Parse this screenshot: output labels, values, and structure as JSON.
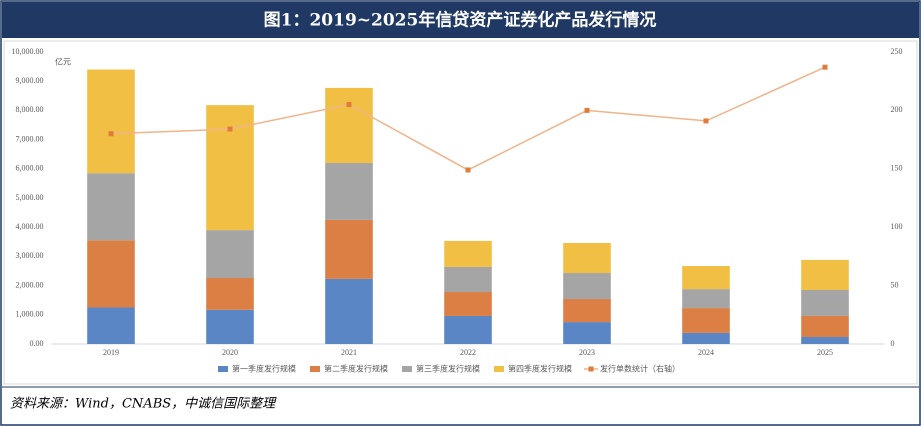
{
  "chart_data": {
    "type": "bar",
    "stacked": true,
    "title": "图1：2019~2025年信贷资产证券化产品发行情况",
    "y_axis_label": "亿元",
    "source": "资料来源：Wind，CNABS，中诚信国际整理",
    "categories": [
      "2019",
      "2020",
      "2021",
      "2022",
      "2023",
      "2024",
      "2025"
    ],
    "series": [
      {
        "name": "第一季度发行规模",
        "color": "#5b86c5",
        "values": [
          1250,
          1170,
          2230,
          960,
          750,
          380,
          240
        ]
      },
      {
        "name": "第二季度发行规模",
        "color": "#dc7f45",
        "values": [
          2300,
          1090,
          2020,
          820,
          790,
          850,
          720
        ]
      },
      {
        "name": "第三季度发行规模",
        "color": "#a5a5a5",
        "values": [
          2300,
          1640,
          1950,
          860,
          890,
          650,
          890
        ]
      },
      {
        "name": "第四季度发行规模",
        "color": "#f2bf45",
        "values": [
          3550,
          4280,
          2570,
          890,
          1030,
          790,
          1030
        ]
      },
      {
        "name": "发行单数统计（右轴）",
        "color": "#f0b48a",
        "marker_color": "#e07b39",
        "type": "line",
        "axis": "y2",
        "values": [
          180,
          184,
          205,
          149,
          200,
          191,
          237
        ]
      }
    ],
    "ylim": [
      0,
      10000
    ],
    "yticks": [
      {
        "value": 0,
        "label": "0.00"
      },
      {
        "value": 1000,
        "label": "1,000.00"
      },
      {
        "value": 2000,
        "label": "2,000.00"
      },
      {
        "value": 3000,
        "label": "3,000.00"
      },
      {
        "value": 4000,
        "label": "4,000.00"
      },
      {
        "value": 5000,
        "label": "5,000.00"
      },
      {
        "value": 6000,
        "label": "6,000.00"
      },
      {
        "value": 7000,
        "label": "7,000.00"
      },
      {
        "value": 8000,
        "label": "8,000.00"
      },
      {
        "value": 9000,
        "label": "9,000.00"
      },
      {
        "value": 10000,
        "label": "10,000.00"
      }
    ],
    "y2lim": [
      0,
      250
    ],
    "y2ticks": [
      0,
      50,
      100,
      150,
      200,
      250
    ],
    "grid": false,
    "legend": "bottom"
  }
}
